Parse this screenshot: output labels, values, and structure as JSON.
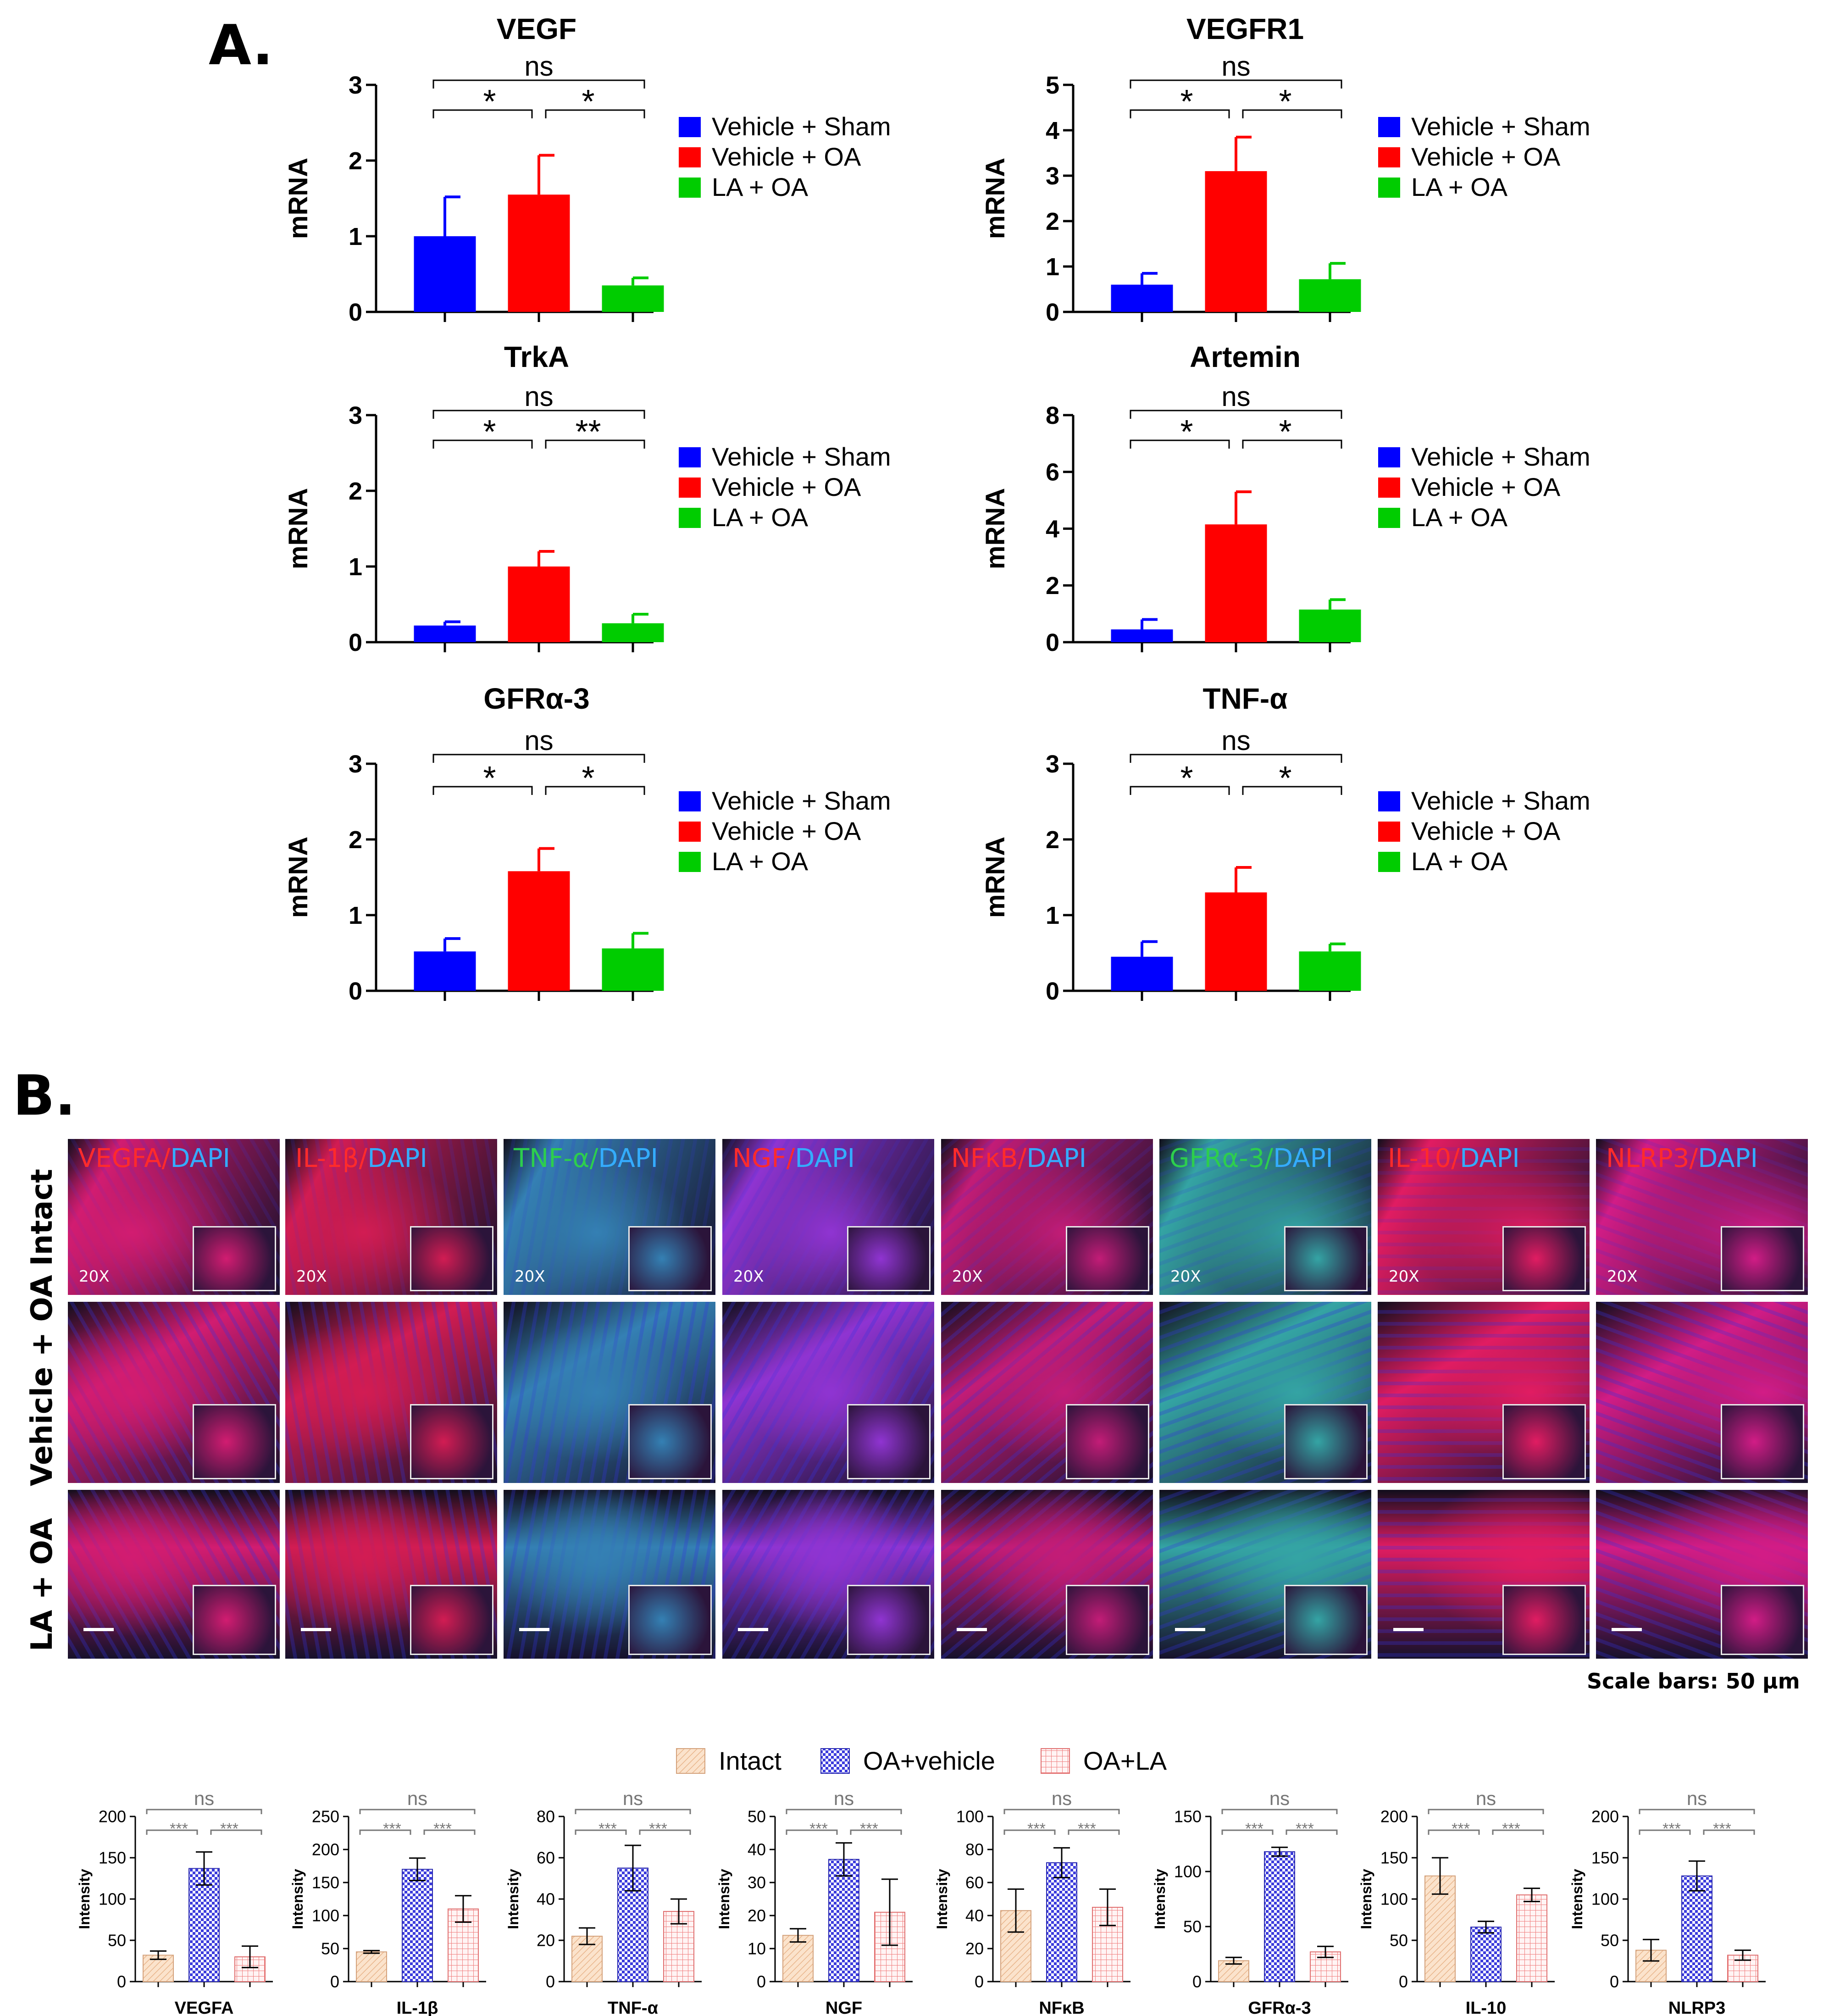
{
  "panels": {
    "A_label": "A.",
    "B_label": "B."
  },
  "colors": {
    "sham": "#0000ff",
    "oa": "#ff0000",
    "la": "#00cc00",
    "intact": "#f5caa0",
    "oa_vehicle": "#3b3bdc",
    "oa_la": "#f08080"
  },
  "chart_data": [
    {
      "type": "bar",
      "title": "VEGF",
      "ylabel": "mRNA",
      "ylim": [
        0,
        3
      ],
      "ticks": [
        "0",
        "1",
        "2",
        "3"
      ],
      "categories": [
        "Vehicle + Sham",
        "Vehicle + OA",
        "LA + OA"
      ],
      "values": [
        1.0,
        1.55,
        0.35
      ],
      "errors": [
        0.52,
        0.52,
        0.1
      ],
      "significance": {
        "left": "*",
        "right": "*",
        "top": "ns"
      }
    },
    {
      "type": "bar",
      "title": "VEGFR1",
      "ylabel": "mRNA",
      "ylim": [
        0,
        5
      ],
      "ticks": [
        "0",
        "1",
        "2",
        "3",
        "4",
        "5"
      ],
      "categories": [
        "Vehicle + Sham",
        "Vehicle + OA",
        "LA + OA"
      ],
      "values": [
        0.6,
        3.1,
        0.72
      ],
      "errors": [
        0.25,
        0.75,
        0.35
      ],
      "significance": {
        "left": "*",
        "right": "*",
        "top": "ns"
      }
    },
    {
      "type": "bar",
      "title": "TrkA",
      "ylabel": "mRNA",
      "ylim": [
        0,
        3
      ],
      "ticks": [
        "0",
        "1",
        "2",
        "3"
      ],
      "categories": [
        "Vehicle + Sham",
        "Vehicle + OA",
        "LA + OA"
      ],
      "values": [
        0.22,
        1.0,
        0.25
      ],
      "errors": [
        0.05,
        0.2,
        0.12
      ],
      "significance": {
        "left": "*",
        "right": "**",
        "top": "ns"
      }
    },
    {
      "type": "bar",
      "title": "Artemin",
      "ylabel": "mRNA",
      "ylim": [
        0,
        8
      ],
      "ticks": [
        "0",
        "2",
        "4",
        "6",
        "8"
      ],
      "categories": [
        "Vehicle + Sham",
        "Vehicle + OA",
        "LA + OA"
      ],
      "values": [
        0.45,
        4.15,
        1.15
      ],
      "errors": [
        0.35,
        1.15,
        0.35
      ],
      "significance": {
        "left": "*",
        "right": "*",
        "top": "ns"
      }
    },
    {
      "type": "bar",
      "title": "GFRα-3",
      "ylabel": "mRNA",
      "ylim": [
        0,
        3
      ],
      "ticks": [
        "0",
        "1",
        "2",
        "3"
      ],
      "categories": [
        "Vehicle + Sham",
        "Vehicle + OA",
        "LA + OA"
      ],
      "values": [
        0.52,
        1.58,
        0.56
      ],
      "errors": [
        0.17,
        0.3,
        0.2
      ],
      "significance": {
        "left": "*",
        "right": "*",
        "top": "ns"
      }
    },
    {
      "type": "bar",
      "title": "TNF-α",
      "ylabel": "mRNA",
      "ylim": [
        0,
        3
      ],
      "ticks": [
        "0",
        "1",
        "2",
        "3"
      ],
      "categories": [
        "Vehicle + Sham",
        "Vehicle + OA",
        "LA + OA"
      ],
      "values": [
        0.45,
        1.3,
        0.52
      ],
      "errors": [
        0.2,
        0.33,
        0.1
      ],
      "significance": {
        "left": "*",
        "right": "*",
        "top": "ns"
      }
    },
    {
      "type": "bar",
      "title": "VEGFA",
      "ylabel": "Intensity",
      "ylim": [
        0,
        200
      ],
      "ticks": [
        "0",
        "50",
        "100",
        "150",
        "200"
      ],
      "categories": [
        "Intact",
        "OA+vehicle",
        "OA+LA"
      ],
      "values": [
        32,
        137,
        30
      ],
      "errors": [
        5,
        20,
        13
      ],
      "significance": {
        "left": "***",
        "right": "***",
        "top": "ns"
      }
    },
    {
      "type": "bar",
      "title": "IL-1β",
      "ylabel": "Intensity",
      "ylim": [
        0,
        250
      ],
      "ticks": [
        "0",
        "50",
        "100",
        "150",
        "200",
        "250"
      ],
      "categories": [
        "Intact",
        "OA+vehicle",
        "OA+LA"
      ],
      "values": [
        45,
        170,
        110
      ],
      "errors": [
        2,
        17,
        20
      ],
      "significance": {
        "left": "***",
        "right": "***",
        "top": "ns"
      }
    },
    {
      "type": "bar",
      "title": "TNF-α",
      "ylabel": "Intensity",
      "ylim": [
        0,
        80
      ],
      "ticks": [
        "0",
        "20",
        "40",
        "60",
        "80"
      ],
      "categories": [
        "Intact",
        "OA+vehicle",
        "OA+LA"
      ],
      "values": [
        22,
        55,
        34
      ],
      "errors": [
        4,
        11,
        6
      ],
      "significance": {
        "left": "***",
        "right": "***",
        "top": "ns"
      }
    },
    {
      "type": "bar",
      "title": "NGF",
      "ylabel": "Intensity",
      "ylim": [
        0,
        50
      ],
      "ticks": [
        "0",
        "10",
        "20",
        "30",
        "40",
        "50"
      ],
      "categories": [
        "Intact",
        "OA+vehicle",
        "OA+LA"
      ],
      "values": [
        14,
        37,
        21
      ],
      "errors": [
        2,
        5,
        10
      ],
      "significance": {
        "left": "***",
        "right": "***",
        "top": "ns"
      }
    },
    {
      "type": "bar",
      "title": "NFκB",
      "ylabel": "Intensity",
      "ylim": [
        0,
        100
      ],
      "ticks": [
        "0",
        "20",
        "40",
        "60",
        "80",
        "100"
      ],
      "categories": [
        "Intact",
        "OA+vehicle",
        "OA+LA"
      ],
      "values": [
        43,
        72,
        45
      ],
      "errors": [
        13,
        9,
        11
      ],
      "significance": {
        "left": "***",
        "right": "***",
        "top": "ns"
      }
    },
    {
      "type": "bar",
      "title": "GFRα-3",
      "ylabel": "Intensity",
      "ylim": [
        0,
        150
      ],
      "ticks": [
        "0",
        "50",
        "100",
        "150"
      ],
      "categories": [
        "Intact",
        "OA+vehicle",
        "OA+LA"
      ],
      "values": [
        19,
        118,
        27
      ],
      "errors": [
        3,
        4,
        5
      ],
      "significance": {
        "left": "***",
        "right": "***",
        "top": "ns"
      }
    },
    {
      "type": "bar",
      "title": "IL-10",
      "ylabel": "Intensity",
      "ylim": [
        0,
        200
      ],
      "ticks": [
        "0",
        "50",
        "100",
        "150",
        "200"
      ],
      "categories": [
        "Intact",
        "OA+vehicle",
        "OA+LA"
      ],
      "values": [
        128,
        66,
        105
      ],
      "errors": [
        22,
        7,
        8
      ],
      "significance": {
        "left": "***",
        "right": "***",
        "top": "ns"
      }
    },
    {
      "type": "bar",
      "title": "NLRP3",
      "ylabel": "Intensity",
      "ylim": [
        0,
        200
      ],
      "ticks": [
        "0",
        "50",
        "100",
        "150",
        "200"
      ],
      "categories": [
        "Intact",
        "OA+vehicle",
        "OA+LA"
      ],
      "values": [
        38,
        128,
        32
      ],
      "errors": [
        13,
        18,
        6
      ],
      "significance": {
        "left": "***",
        "right": "***",
        "top": "ns"
      }
    }
  ],
  "micrographs": {
    "row_labels": [
      "Intact",
      "Vehicle + OA",
      "LA + OA"
    ],
    "magnification": "20X",
    "scale_note": "Scale bars: 50 μm",
    "columns": [
      {
        "marker": "VEGFA",
        "sep": "/",
        "dapi": "DAPI",
        "marker_color": "#ff2020",
        "tissue_color": "#d0106a"
      },
      {
        "marker": "IL-1β",
        "sep": "/",
        "dapi": "DAPI",
        "marker_color": "#ff2020",
        "tissue_color": "#d0104a"
      },
      {
        "marker": "TNF-α",
        "sep": "/",
        "dapi": "DAPI",
        "marker_color": "#22cc44",
        "tissue_color": "#2a7ab0"
      },
      {
        "marker": "NGF",
        "sep": "/",
        "dapi": "DAPI",
        "marker_color": "#ff2020",
        "tissue_color": "#8a2ad0"
      },
      {
        "marker": "NFκB",
        "sep": "/",
        "dapi": "DAPI",
        "marker_color": "#ff2020",
        "tissue_color": "#c01070"
      },
      {
        "marker": "GFRα-3",
        "sep": "/",
        "dapi": "DAPI",
        "marker_color": "#22cc44",
        "tissue_color": "#2aa0a0"
      },
      {
        "marker": "IL-10",
        "sep": "/",
        "dapi": "DAPI",
        "marker_color": "#ff2020",
        "tissue_color": "#e0105a"
      },
      {
        "marker": "NLRP3",
        "sep": "/",
        "dapi": "DAPI",
        "marker_color": "#ff2020",
        "tissue_color": "#d01080"
      }
    ]
  }
}
